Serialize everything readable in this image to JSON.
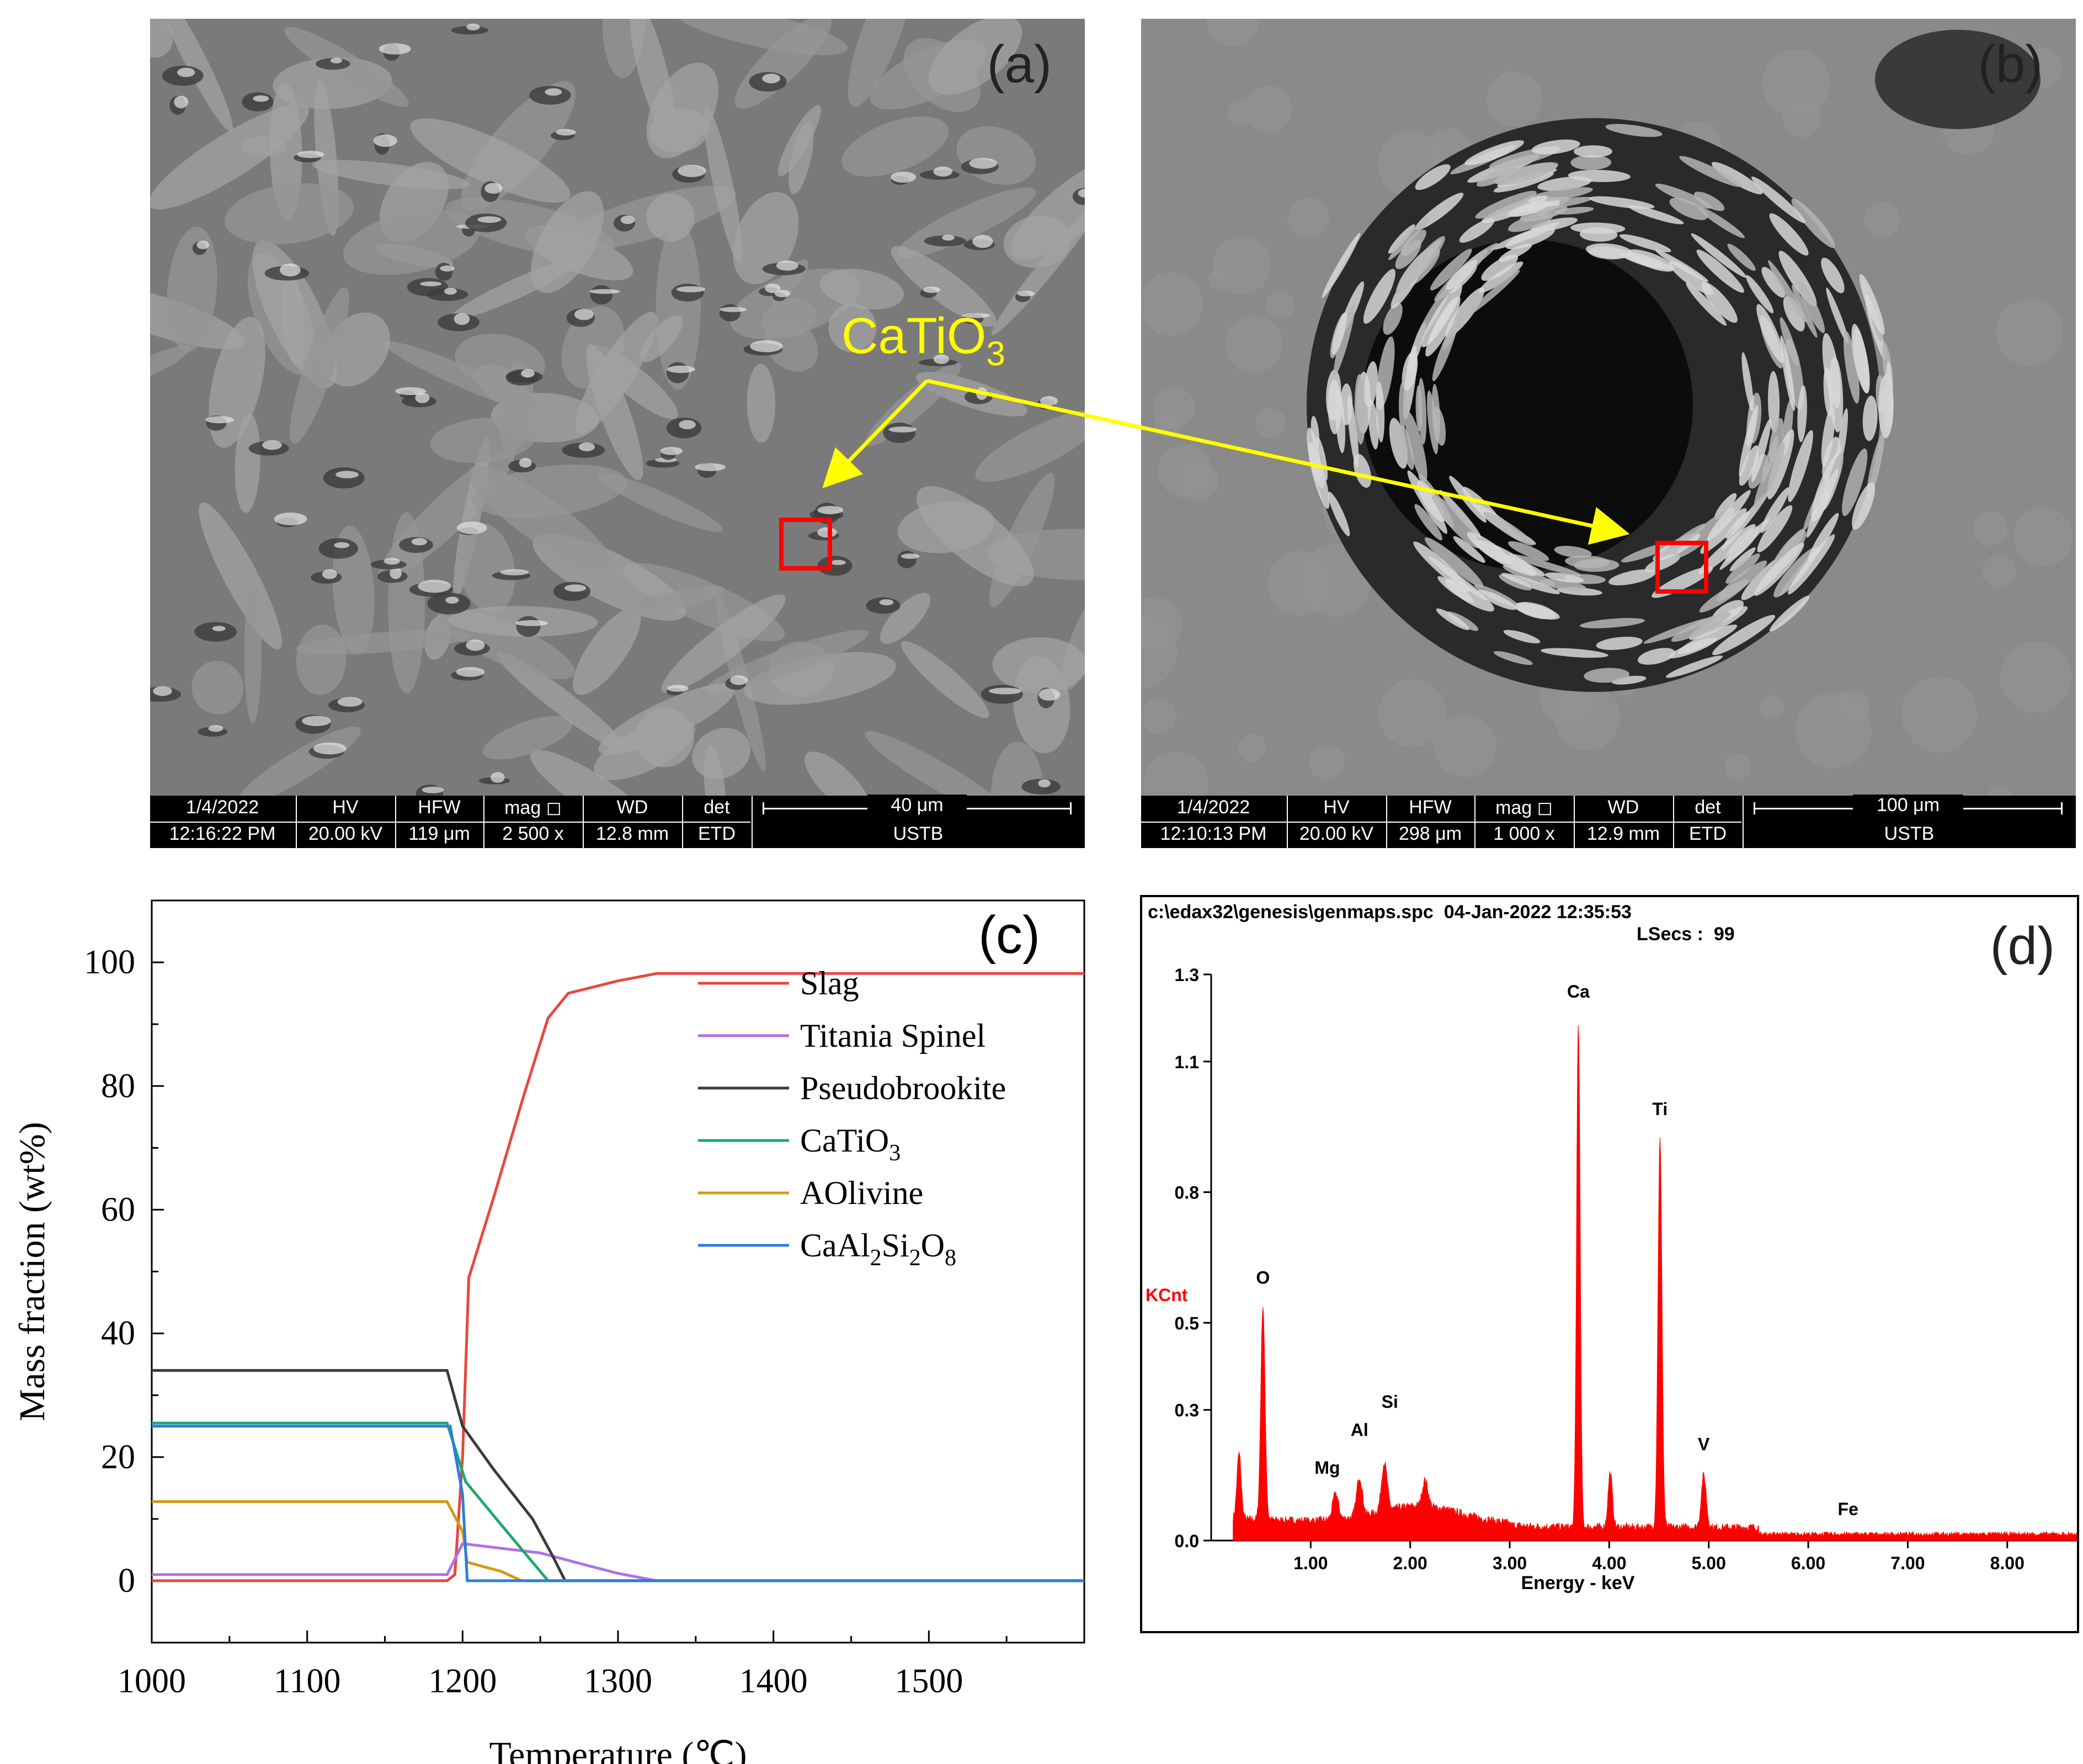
{
  "panels": {
    "a": {
      "label": "(a)",
      "databar": {
        "date": "1/4/2022",
        "time": "12:16:22 PM",
        "hv_label": "HV",
        "hv_value": "20.00 kV",
        "hfw_label": "HFW",
        "hfw_value": "119 μm",
        "mag_label": "mag ◻",
        "mag_value": "2 500 x",
        "wd_label": "WD",
        "wd_value": "12.8 mm",
        "det_label": "det",
        "det_value": "ETD",
        "scale_label": "40 μm",
        "institution": "USTB"
      }
    },
    "b": {
      "label": "(b)",
      "databar": {
        "date": "1/4/2022",
        "time": "12:10:13 PM",
        "hv_label": "HV",
        "hv_value": "20.00 kV",
        "hfw_label": "HFW",
        "hfw_value": "298 μm",
        "mag_label": "mag ◻",
        "mag_value": "1 000 x",
        "wd_label": "WD",
        "wd_value": "12.9 mm",
        "det_label": "det",
        "det_value": "ETD",
        "scale_label": "100 μm",
        "institution": "USTB"
      }
    },
    "c": {
      "label": "(c)"
    },
    "d": {
      "label": "(d)"
    }
  },
  "annotation": {
    "phase": "CaTiO",
    "phase_sub": "3",
    "color": "#ffff00",
    "box_color": "#ff0000"
  },
  "chart_data": [
    {
      "type": "line",
      "xlabel": "Temperature (℃)",
      "ylabel": "Mass fraction (wt%)",
      "xlim": [
        1000,
        1600
      ],
      "ylim": [
        -10,
        110
      ],
      "xticks": [
        1000,
        1100,
        1200,
        1300,
        1400,
        1500
      ],
      "yticks": [
        0,
        20,
        40,
        60,
        80,
        100
      ],
      "legend_position": "center-right",
      "series": [
        {
          "name": "Slag",
          "color": "#e8473f",
          "points": [
            [
              1000,
              0
            ],
            [
              1190,
              0
            ],
            [
              1195,
              1
            ],
            [
              1200,
              20
            ],
            [
              1204,
              49
            ],
            [
              1220,
              62
            ],
            [
              1240,
              79
            ],
            [
              1255,
              91
            ],
            [
              1268,
              95
            ],
            [
              1300,
              97
            ],
            [
              1325,
              98.2
            ],
            [
              1600,
              98.2
            ]
          ]
        },
        {
          "name": "Titania Spinel",
          "color": "#b06fe8",
          "points": [
            [
              1000,
              1
            ],
            [
              1190,
              1
            ],
            [
              1200,
              6
            ],
            [
              1250,
              4.5
            ],
            [
              1280,
              2.5
            ],
            [
              1300,
              1.2
            ],
            [
              1325,
              0
            ],
            [
              1600,
              0
            ]
          ]
        },
        {
          "name": "Pseudobrookite",
          "color": "#3a3a3a",
          "points": [
            [
              1000,
              34
            ],
            [
              1190,
              34
            ],
            [
              1200,
              25
            ],
            [
              1220,
              18
            ],
            [
              1245,
              10
            ],
            [
              1258,
              4
            ],
            [
              1266,
              0
            ],
            [
              1600,
              0
            ]
          ]
        },
        {
          "name": "CaTiO",
          "name_sub": "3",
          "color": "#1fa86a",
          "points": [
            [
              1000,
              25.5
            ],
            [
              1190,
              25.5
            ],
            [
              1202,
              16
            ],
            [
              1225,
              9
            ],
            [
              1245,
              3
            ],
            [
              1255,
              0
            ],
            [
              1600,
              0
            ]
          ]
        },
        {
          "name": "AOlivine",
          "color": "#d49a17",
          "points": [
            [
              1000,
              12.8
            ],
            [
              1190,
              12.8
            ],
            [
              1200,
              8
            ],
            [
              1203,
              3
            ],
            [
              1225,
              1.5
            ],
            [
              1238,
              0
            ],
            [
              1600,
              0
            ]
          ]
        },
        {
          "name": "CaAl",
          "name_sub": "2",
          "name_mid": "Si",
          "name_sub2": "2",
          "name_mid2": "O",
          "name_sub3": "8",
          "color": "#2a7de1",
          "points": [
            [
              1000,
              25
            ],
            [
              1192,
              25
            ],
            [
              1200,
              14
            ],
            [
              1203,
              0
            ],
            [
              1600,
              0
            ]
          ]
        }
      ]
    },
    {
      "type": "area",
      "header_line1": "c:\\edax32\\genesis\\genmaps.spc  04-Jan-2022 12:35:53",
      "header_line2": "LSecs :  99",
      "xlabel": "Energy - keV",
      "ylabel": "KCnt",
      "xlim": [
        0,
        8.7
      ],
      "ylim": [
        0,
        1.3
      ],
      "xticks": [
        "1.00",
        "2.00",
        "3.00",
        "4.00",
        "5.00",
        "6.00",
        "7.00",
        "8.00"
      ],
      "yticks": [
        "0.0",
        "0.3",
        "0.5",
        "0.8",
        "1.1",
        "1.3"
      ],
      "fill_color": "#ff0000",
      "peaks": [
        {
          "label": "O",
          "x": 0.52,
          "y": 0.52
        },
        {
          "label": "Mg",
          "x": 1.25,
          "y": 0.09
        },
        {
          "label": "Al",
          "x": 1.49,
          "y": 0.12
        },
        {
          "label": "Si",
          "x": 1.74,
          "y": 0.14
        },
        {
          "label": "Ca",
          "x": 3.69,
          "y": 1.19
        },
        {
          "label": "Ti",
          "x": 4.51,
          "y": 0.92
        },
        {
          "label": "V",
          "x": 4.95,
          "y": 0.15
        },
        {
          "label": "Fe",
          "x": 6.4,
          "y": 0.02
        }
      ]
    }
  ]
}
